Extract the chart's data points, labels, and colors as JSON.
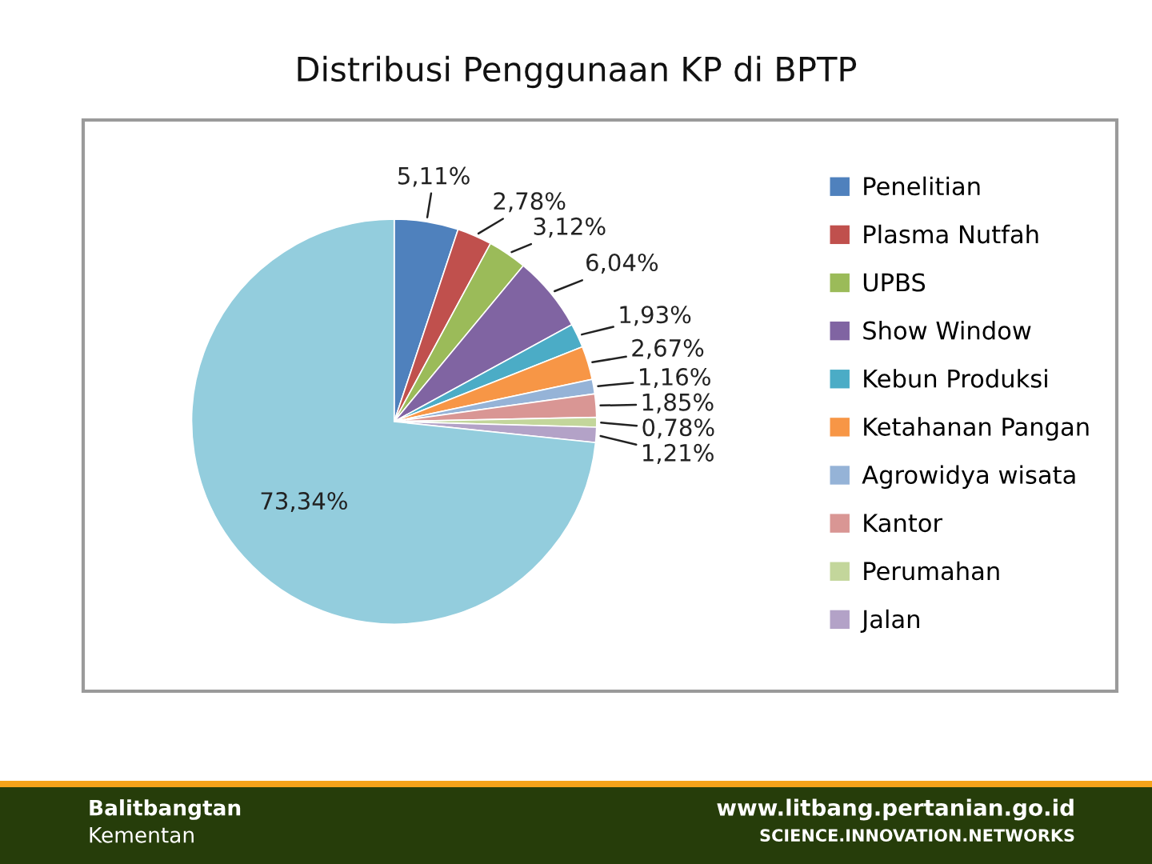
{
  "chart_data": {
    "type": "pie",
    "title": "Distribusi Penggunaan KP di BPTP",
    "categories": [
      "Penelitian",
      "Plasma Nutfah",
      "UPBS",
      "Show Window",
      "Kebun Produksi",
      "Ketahanan Pangan",
      "Agrowidya wisata",
      "Kantor",
      "Perumahan",
      "Jalan",
      null
    ],
    "values": [
      5.11,
      2.78,
      3.12,
      6.04,
      1.93,
      2.67,
      1.16,
      1.85,
      0.78,
      1.21,
      73.34
    ],
    "colors": [
      "#4f81bd",
      "#c0504d",
      "#9bbb59",
      "#8064a2",
      "#4bacc6",
      "#f79646",
      "#95b3d7",
      "#d99694",
      "#c3d69b",
      "#b3a2c7",
      "#93cddd"
    ],
    "value_labels": [
      "5,11%",
      "2,78%",
      "3,12%",
      "6,04%",
      "1,93%",
      "2,67%",
      "1,16%",
      "1,85%",
      "0,78%",
      "1,21%",
      "73,34%"
    ],
    "legend": "right",
    "annotations": [
      "Balitbangtan",
      "Kementan",
      "www.litbang.pertanian.go.id",
      "SCIENCE.INNOVATION.NETWORKS"
    ]
  }
}
